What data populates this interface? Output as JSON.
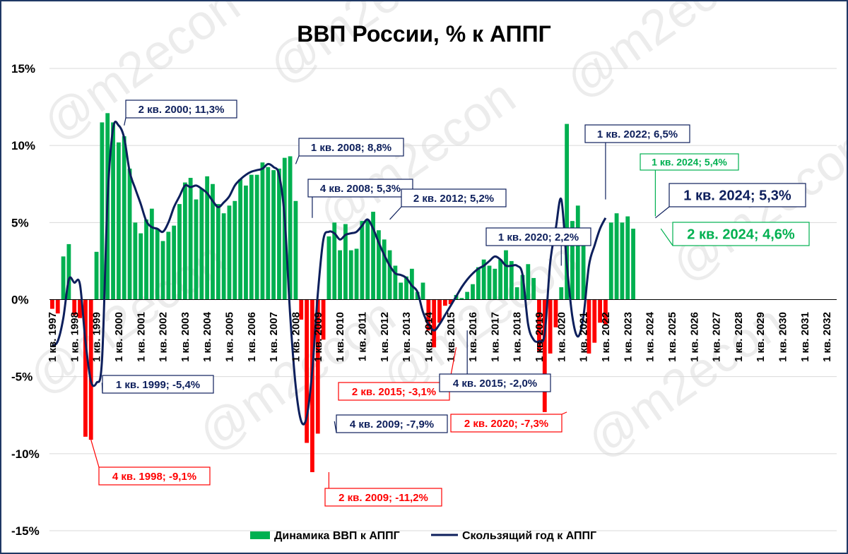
{
  "chart_data": {
    "type": "bar",
    "title": "ВВП России, % к АППГ",
    "watermark": "@m2econ",
    "ylim": [
      -15,
      15
    ],
    "yticks": [
      {
        "v": 15,
        "label": "15%"
      },
      {
        "v": 10,
        "label": "10%"
      },
      {
        "v": 5,
        "label": "5%"
      },
      {
        "v": 0,
        "label": "0%"
      },
      {
        "v": -5,
        "label": "-5%"
      },
      {
        "v": -10,
        "label": "-10%"
      },
      {
        "v": -15,
        "label": "-15%"
      }
    ],
    "grid": true,
    "legend_position": "bottom",
    "x_start": "1 кв. 1997",
    "x_tick_labels": [
      "1 кв. 1997",
      "1 кв. 1998",
      "1 кв. 1999",
      "1 кв. 2000",
      "1 кв. 2001",
      "1 кв. 2002",
      "1 кв. 2003",
      "1 кв. 2004",
      "1 кв. 2005",
      "1 кв. 2006",
      "1 кв. 2007",
      "1 кв. 2008",
      "1 кв. 2009",
      "1 кв. 2010",
      "1 кв. 2011",
      "1 кв. 2012",
      "1 кв. 2013",
      "1 кв. 2014",
      "1 кв. 2015",
      "1 кв. 2016",
      "1 кв. 2017",
      "1 кв. 2018",
      "1 кв. 2019",
      "1 кв. 2020",
      "1 кв. 2021",
      "1 кв. 2022",
      "1 кв. 2023",
      "1 кв. 2024",
      "1 кв. 2025",
      "1 кв. 2026",
      "1 кв. 2027",
      "1 кв. 2028",
      "1 кв. 2029",
      "1 кв. 2030",
      "1 кв. 2031",
      "1 кв. 2032"
    ],
    "colors": {
      "positive": "#00b050",
      "negative": "#ff0000",
      "line": "#0d1f5c",
      "grid": "#d9d9d9",
      "annotation_blue": "#0d1f5c",
      "annotation_red": "#ff0000",
      "annotation_green": "#00b050"
    },
    "series": [
      {
        "name": "Динамика ВВП к АППГ",
        "type": "bar",
        "values": [
          -0.6,
          -0.9,
          2.8,
          3.6,
          -1.0,
          -1.2,
          -8.9,
          -9.1,
          3.1,
          11.5,
          12.1,
          11.5,
          10.2,
          10.6,
          8.5,
          5.0,
          4.3,
          5.2,
          5.9,
          4.6,
          3.8,
          4.4,
          4.8,
          6.2,
          7.6,
          7.9,
          6.5,
          7.2,
          8.0,
          7.5,
          6.2,
          5.6,
          6.1,
          6.4,
          7.8,
          7.4,
          8.1,
          8.1,
          8.9,
          8.6,
          8.4,
          8.5,
          9.2,
          9.3,
          6.4,
          -1.3,
          -9.3,
          -11.2,
          -8.7,
          -2.6,
          4.1,
          5.0,
          3.2,
          4.9,
          3.2,
          3.3,
          5.1,
          5.2,
          5.7,
          4.5,
          3.9,
          3.2,
          2.2,
          1.1,
          1.5,
          2.0,
          0.5,
          1.1,
          -2.0,
          -3.1,
          -1.5,
          -0.4,
          -0.3,
          0.3,
          0.1,
          0.5,
          1.0,
          2.1,
          2.6,
          2.2,
          2.0,
          2.6,
          3.2,
          2.5,
          0.8,
          1.6,
          2.3,
          1.4,
          -3.4,
          -7.3,
          -3.5,
          -1.8,
          0.8,
          11.4,
          5.1,
          6.1,
          3.7,
          -3.5,
          -2.8,
          -1.5,
          -1.6,
          5.0,
          5.6,
          5.0,
          5.4,
          4.6
        ],
        "color": "#00b050"
      },
      {
        "name": "Скользящий год к АППГ",
        "type": "line",
        "values": [
          -3.0,
          -2.7,
          -1.2,
          1.3,
          1.1,
          1.0,
          -2.7,
          -5.3,
          -5.4,
          -3.9,
          6.5,
          11.1,
          11.3,
          10.5,
          8.3,
          7.2,
          6.2,
          5.1,
          4.7,
          4.6,
          4.4,
          5.0,
          6.0,
          6.7,
          7.4,
          7.3,
          7.4,
          7.2,
          6.9,
          6.4,
          6.0,
          6.3,
          6.7,
          7.4,
          7.8,
          8.1,
          8.3,
          8.4,
          8.5,
          8.8,
          8.6,
          8.1,
          5.3,
          -1.0,
          -5.6,
          -7.9,
          -7.6,
          -4.6,
          0.4,
          3.9,
          4.4,
          4.3,
          3.9,
          4.2,
          4.3,
          4.4,
          4.8,
          5.2,
          4.6,
          3.7,
          2.9,
          2.2,
          1.7,
          1.6,
          1.4,
          0.9,
          0.5,
          -0.8,
          -1.6,
          -2.0,
          -1.6,
          -1.0,
          -0.4,
          0.2,
          0.8,
          1.3,
          1.7,
          2.0,
          2.2,
          2.5,
          2.8,
          2.6,
          2.2,
          2.2,
          2.2,
          1.6,
          -1.6,
          -2.6,
          -2.7,
          -2.2,
          2.4,
          4.6,
          6.5,
          2.3,
          -1.1,
          -2.4,
          -1.1,
          2.2,
          3.5,
          4.6,
          5.3
        ],
        "color": "#0d1f5c"
      }
    ],
    "annotations": [
      {
        "text": "2 кв. 2000; 11,3%",
        "color": "#0d1f5c"
      },
      {
        "text": "1 кв. 2008; 8,8%",
        "color": "#0d1f5c"
      },
      {
        "text": "4 кв. 2008; 5,3%",
        "color": "#0d1f5c"
      },
      {
        "text": "2 кв. 2012; 5,2%",
        "color": "#0d1f5c"
      },
      {
        "text": "1 кв. 2020; 2,2%",
        "color": "#0d1f5c"
      },
      {
        "text": "1 кв. 2022; 6,5%",
        "color": "#0d1f5c"
      },
      {
        "text": "1 кв. 2024; 5,4%",
        "color": "#00b050"
      },
      {
        "text": "1 кв. 2024; 5,3%",
        "color": "#0d1f5c"
      },
      {
        "text": "2 кв. 2024; 4,6%",
        "color": "#00b050"
      },
      {
        "text": "1 кв. 1999; -5,4%",
        "color": "#0d1f5c"
      },
      {
        "text": "4 кв. 1998; -9,1%",
        "color": "#ff0000"
      },
      {
        "text": "2 кв. 2015; -3,1%",
        "color": "#ff0000"
      },
      {
        "text": "4 кв. 2015; -2,0%",
        "color": "#0d1f5c"
      },
      {
        "text": "4 кв. 2009; -7,9%",
        "color": "#0d1f5c"
      },
      {
        "text": "2 кв. 2020; -7,3%",
        "color": "#ff0000"
      },
      {
        "text": "2 кв. 2009; -11,2%",
        "color": "#ff0000"
      }
    ]
  }
}
